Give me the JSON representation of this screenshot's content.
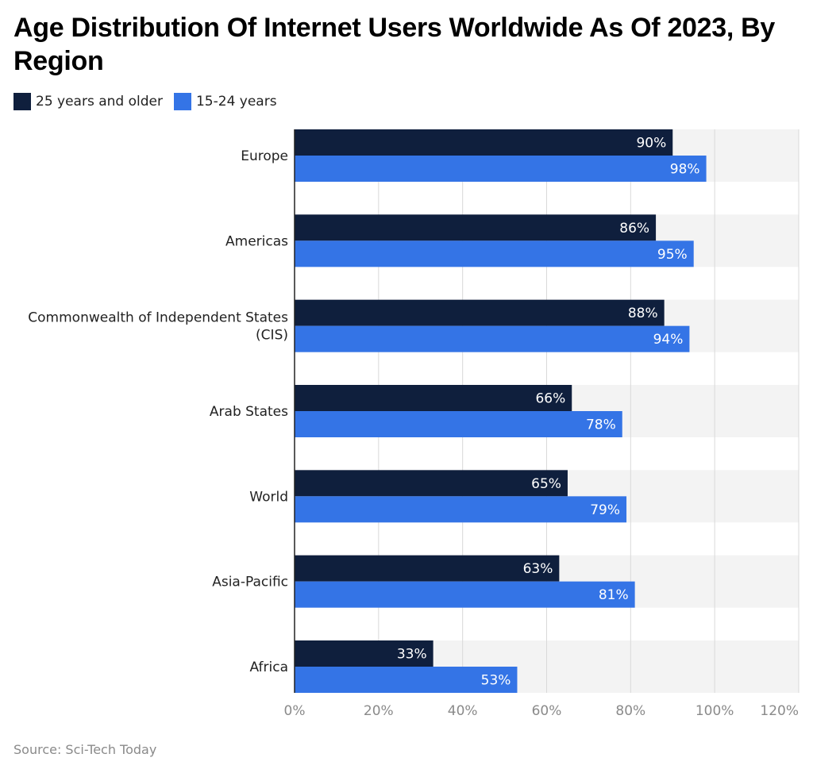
{
  "chart_data": {
    "type": "bar",
    "orientation": "horizontal",
    "title": "Age Distribution Of Internet Users Worldwide As Of 2023, By Region",
    "categories": [
      [
        "Europe"
      ],
      [
        "Americas"
      ],
      [
        "Commonwealth of Independent States",
        "(CIS)"
      ],
      [
        "Arab States"
      ],
      [
        "World"
      ],
      [
        "Asia-Pacific"
      ],
      [
        "Africa"
      ]
    ],
    "series": [
      {
        "name": "25 years and older",
        "color": "#0f1f3d",
        "values": [
          90,
          86,
          88,
          66,
          65,
          63,
          33
        ],
        "labels": [
          "90%",
          "86%",
          "88%",
          "66%",
          "65%",
          "63%",
          "33%"
        ]
      },
      {
        "name": "15-24 years",
        "color": "#3474e6",
        "values": [
          98,
          95,
          94,
          78,
          79,
          81,
          53
        ],
        "labels": [
          "98%",
          "95%",
          "94%",
          "78%",
          "79%",
          "81%",
          "53%"
        ]
      }
    ],
    "xlim": [
      0,
      120
    ],
    "xticks": [
      0,
      20,
      40,
      60,
      80,
      100,
      120
    ],
    "xtick_labels": [
      "0%",
      "20%",
      "40%",
      "60%",
      "80%",
      "100%",
      "120%"
    ],
    "grid": true,
    "legend_position": "top-left",
    "source": "Source: Sci-Tech Today"
  }
}
